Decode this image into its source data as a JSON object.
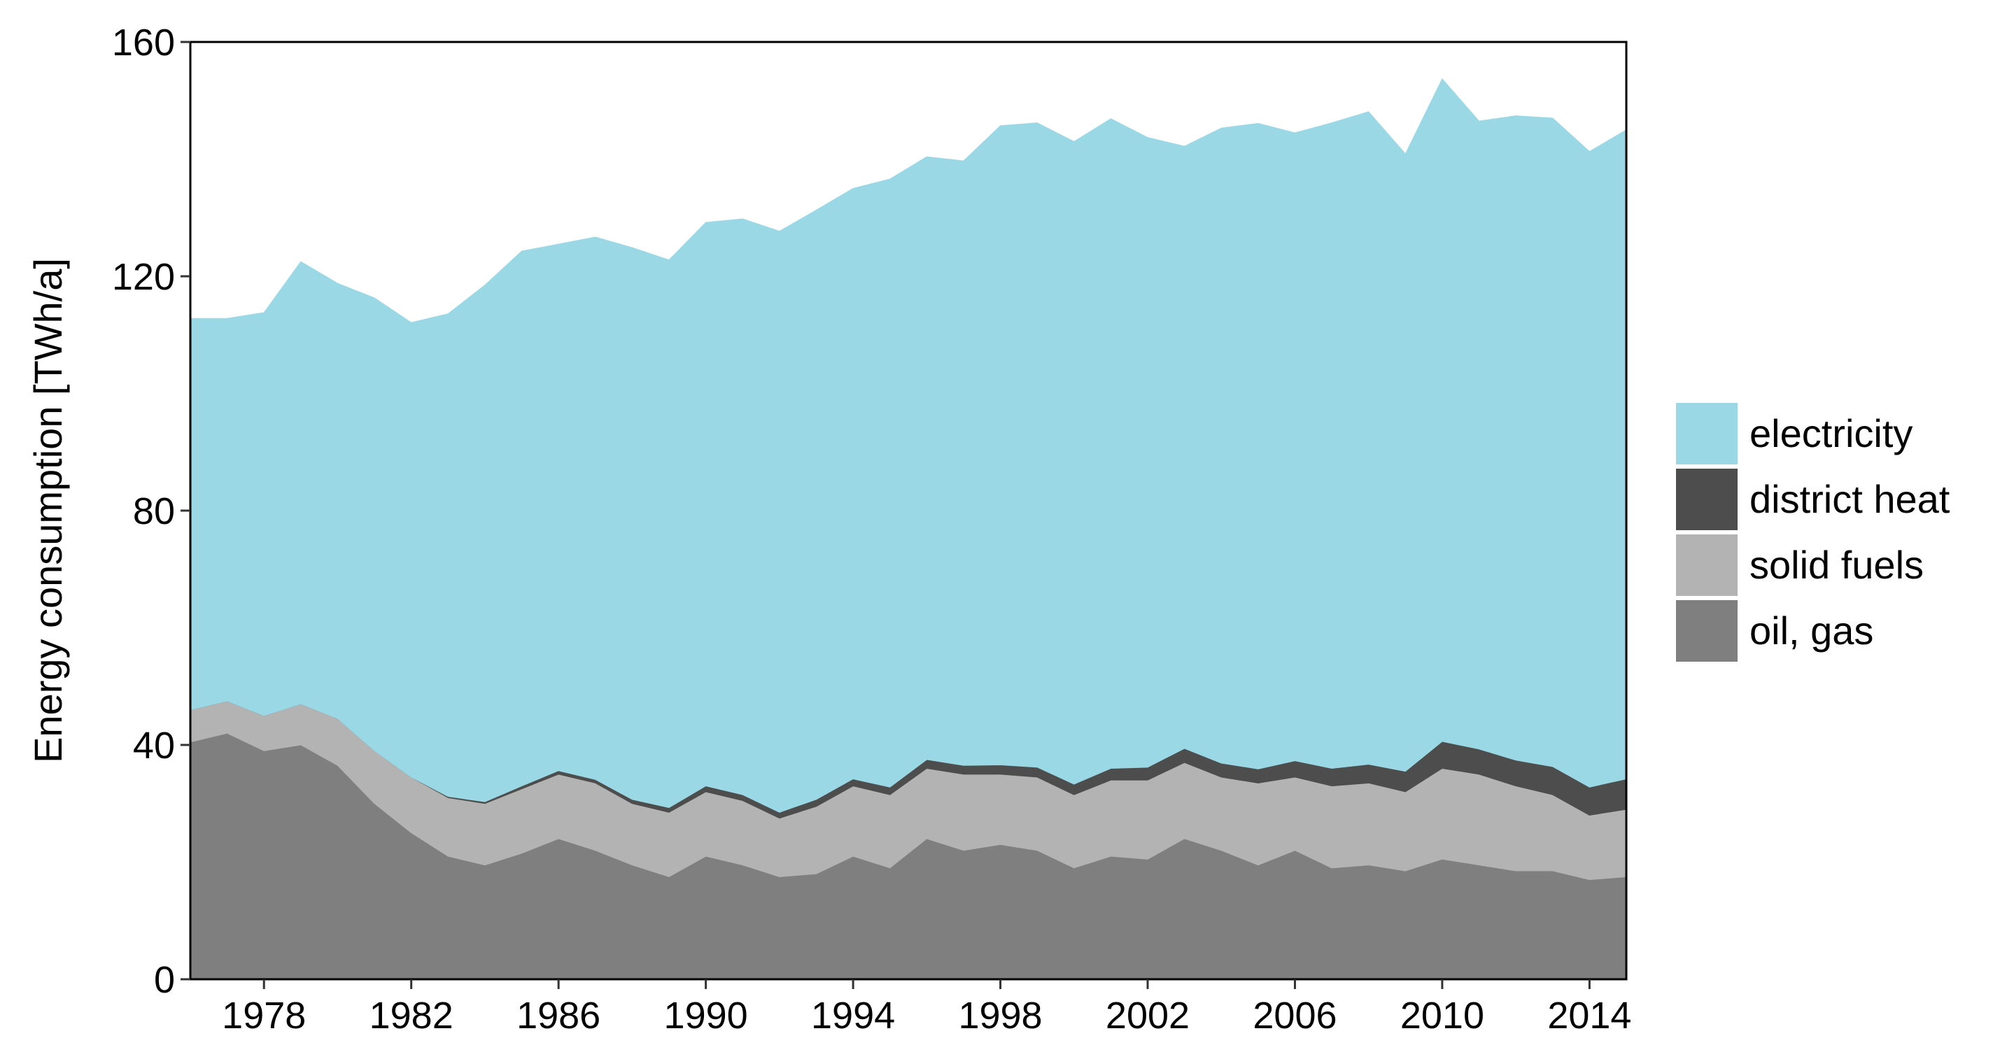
{
  "chart_data": {
    "type": "area",
    "stacked": true,
    "title": "",
    "xlabel": "",
    "ylabel": "Energy consumption [TWh/a]",
    "xlim": [
      1976,
      2015
    ],
    "ylim": [
      0,
      160
    ],
    "x_ticks": [
      1978,
      1982,
      1986,
      1990,
      1994,
      1998,
      2002,
      2006,
      2010,
      2014
    ],
    "y_ticks": [
      0,
      40,
      80,
      120,
      160
    ],
    "grid": false,
    "legend_position": "right",
    "x": [
      1976,
      1977,
      1978,
      1979,
      1980,
      1981,
      1982,
      1983,
      1984,
      1985,
      1986,
      1987,
      1988,
      1989,
      1990,
      1991,
      1992,
      1993,
      1994,
      1995,
      1996,
      1997,
      1998,
      1999,
      2000,
      2001,
      2002,
      2003,
      2004,
      2005,
      2006,
      2007,
      2008,
      2009,
      2010,
      2011,
      2012,
      2013,
      2014,
      2015
    ],
    "series": [
      {
        "name": "oil, gas",
        "color": "#7f7f7f",
        "values": [
          40.5,
          42,
          39,
          40,
          36.5,
          30,
          25,
          21,
          19.5,
          21.5,
          24,
          22,
          19.5,
          17.5,
          21,
          19.5,
          17.5,
          18,
          21,
          19,
          24,
          22,
          23,
          22,
          19,
          21,
          20.5,
          24,
          22,
          19.5,
          22,
          19,
          19.5,
          18.5,
          20.5,
          19.5,
          18.5,
          18.5,
          17,
          17.5
        ]
      },
      {
        "name": "solid fuels",
        "color": "#b3b3b3",
        "values": [
          5.5,
          5.5,
          6,
          7,
          8,
          9,
          9.5,
          10,
          10.5,
          11,
          11,
          11.5,
          10.5,
          11,
          11,
          11,
          10,
          11.5,
          12,
          12.5,
          12,
          13,
          12,
          12.5,
          12.5,
          13,
          13.5,
          13,
          12.5,
          14,
          12.5,
          14,
          14,
          13.5,
          15.5,
          15.5,
          14.5,
          13,
          11,
          11.5
        ]
      },
      {
        "name": "district heat",
        "color": "#4d4d4d",
        "values": [
          0,
          0,
          0,
          0,
          0,
          0,
          0,
          0.2,
          0.3,
          0.5,
          0.6,
          0.6,
          0.7,
          0.8,
          1,
          1,
          1,
          1.2,
          1.2,
          1.3,
          1.5,
          1.5,
          1.6,
          1.7,
          1.8,
          2,
          2.2,
          2.4,
          2.4,
          2.4,
          2.8,
          3,
          3.2,
          3.5,
          4.6,
          4.3,
          4.4,
          4.8,
          4.8,
          5.2
        ]
      },
      {
        "name": "electricity",
        "color": "#9ad8e5",
        "values": [
          66.8,
          65.3,
          68.8,
          75.5,
          74.3,
          77.3,
          77.6,
          82.4,
          88.2,
          91.3,
          89.9,
          92.6,
          94.2,
          93.5,
          96.2,
          98.3,
          99.2,
          100.6,
          100.8,
          103.8,
          102.9,
          103.2,
          109.1,
          110,
          109.7,
          110.9,
          107.5,
          102.8,
          108.4,
          110.2,
          107.2,
          110.2,
          111.4,
          105.4,
          113.1,
          107.2,
          110,
          110.7,
          108.5,
          110.8
        ]
      }
    ]
  }
}
